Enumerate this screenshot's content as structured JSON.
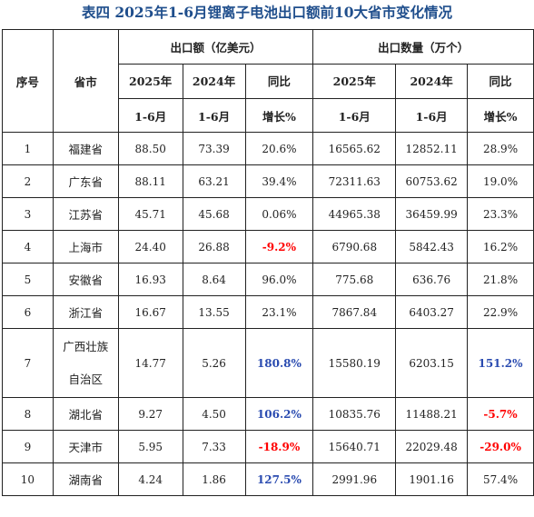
{
  "title": "表四 2025年1-6月锂离子电池出口额前10大省市变化情况",
  "header": {
    "seq": "序号",
    "province": "省市",
    "export_value_group": "出口额（亿美元）",
    "export_qty_group": "出口数量（万个）",
    "col_2025_line1": "2025年",
    "col_2025_line2": "1-6月",
    "col_2024_line1": "2024年",
    "col_2024_line2": "1-6月",
    "yoy_line1": "同比",
    "yoy_line2": "增长%"
  },
  "rows": [
    {
      "seq": "1",
      "province": "福建省",
      "value_2025": "88.50",
      "value_2024": "73.39",
      "value_yoy": "20.6%",
      "qty_2025": "16565.62",
      "qty_2024": "12852.11",
      "qty_yoy": "28.9%"
    },
    {
      "seq": "2",
      "province": "广东省",
      "value_2025": "88.11",
      "value_2024": "63.21",
      "value_yoy": "39.4%",
      "qty_2025": "72311.63",
      "qty_2024": "60753.62",
      "qty_yoy": "19.0%"
    },
    {
      "seq": "3",
      "province": "江苏省",
      "value_2025": "45.71",
      "value_2024": "45.68",
      "value_yoy": "0.06%",
      "qty_2025": "44965.38",
      "qty_2024": "36459.99",
      "qty_yoy": "23.3%"
    },
    {
      "seq": "4",
      "province": "上海市",
      "value_2025": "24.40",
      "value_2024": "26.88",
      "value_yoy": "-9.2%",
      "qty_2025": "6790.68",
      "qty_2024": "5842.43",
      "qty_yoy": "16.2%"
    },
    {
      "seq": "5",
      "province": "安徽省",
      "value_2025": "16.93",
      "value_2024": "8.64",
      "value_yoy": "96.0%",
      "qty_2025": "775.68",
      "qty_2024": "636.76",
      "qty_yoy": "21.8%"
    },
    {
      "seq": "6",
      "province": "浙江省",
      "value_2025": "16.67",
      "value_2024": "13.55",
      "value_yoy": "23.1%",
      "qty_2025": "7867.84",
      "qty_2024": "6403.27",
      "qty_yoy": "22.9%"
    },
    {
      "seq": "7",
      "province_line1": "广西壮族",
      "province_line2": "自治区",
      "value_2025": "14.77",
      "value_2024": "5.26",
      "value_yoy": "180.8%",
      "qty_2025": "15580.19",
      "qty_2024": "6203.15",
      "qty_yoy": "151.2%"
    },
    {
      "seq": "8",
      "province": "湖北省",
      "value_2025": "9.27",
      "value_2024": "4.50",
      "value_yoy": "106.2%",
      "qty_2025": "10835.76",
      "qty_2024": "11488.21",
      "qty_yoy": "-5.7%"
    },
    {
      "seq": "9",
      "province": "天津市",
      "value_2025": "5.95",
      "value_2024": "7.33",
      "value_yoy": "-18.9%",
      "qty_2025": "15640.71",
      "qty_2024": "22029.48",
      "qty_yoy": "-29.0%"
    },
    {
      "seq": "10",
      "province": "湖南省",
      "value_2025": "4.24",
      "value_2024": "1.86",
      "value_yoy": "127.5%",
      "qty_2025": "2991.96",
      "qty_2024": "1901.16",
      "qty_yoy": "57.4%"
    }
  ],
  "colors": {
    "title": "#1f4e8c",
    "negative_highlight": "#ff0000",
    "positive_highlight": "#2a4bb0"
  }
}
